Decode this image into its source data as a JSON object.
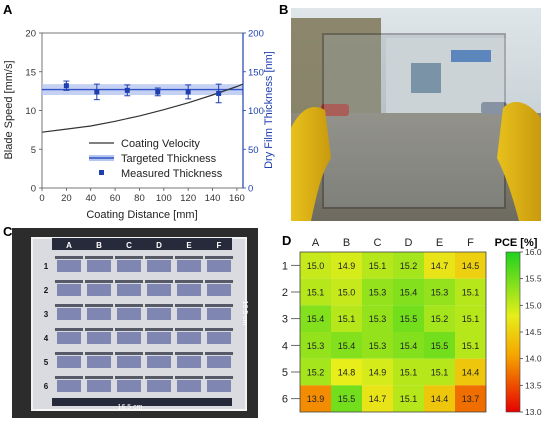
{
  "panels": {
    "a": "A",
    "b": "B",
    "c": "C",
    "d": "D"
  },
  "chart_data": [
    {
      "type": "line",
      "xlabel": "Coating Distance [mm]",
      "ylabel": "Blade Speed [mm/s]",
      "y2label": "Dry Film Thickness [nm]",
      "xlim": [
        0,
        165
      ],
      "ylim": [
        0,
        20
      ],
      "y2lim": [
        0,
        200
      ],
      "xticks": [
        "0",
        "20",
        "40",
        "60",
        "80",
        "100",
        "120",
        "140",
        "160"
      ],
      "yticks": [
        "0",
        "5",
        "10",
        "15",
        "20"
      ],
      "y2ticks": [
        "0",
        "50",
        "100",
        "150",
        "200"
      ],
      "legend": {
        "position": "lower-right",
        "entries": [
          "Coating Velocity",
          "Targeted Thickness",
          "Measured Thickness"
        ]
      },
      "coating_velocity": {
        "x": [
          0,
          20,
          40,
          60,
          80,
          100,
          120,
          140,
          160,
          165
        ],
        "y": [
          7.2,
          7.6,
          8.0,
          8.6,
          9.3,
          10.1,
          11.0,
          12.0,
          13.1,
          13.4
        ]
      },
      "targeted_thickness": {
        "value": 127,
        "band": [
          120,
          134
        ]
      },
      "measured_thickness": {
        "x": [
          20,
          45,
          70,
          95,
          120,
          145
        ],
        "y": [
          132,
          124,
          126,
          124,
          124,
          122
        ],
        "err": [
          6,
          10,
          7,
          5,
          9,
          12
        ]
      },
      "colors": {
        "axis_right": "#1f3fb0",
        "velocity": "#333333",
        "target": "#2f52c8",
        "measured": "#1f3fb0"
      }
    },
    {
      "type": "heatmap",
      "colorbar_label": "PCE [%]",
      "columns": [
        "A",
        "B",
        "C",
        "D",
        "E",
        "F"
      ],
      "rows": [
        "1",
        "2",
        "3",
        "4",
        "5",
        "6"
      ],
      "values": [
        [
          15.0,
          14.9,
          15.1,
          15.2,
          14.7,
          14.5
        ],
        [
          15.1,
          15.0,
          15.3,
          15.4,
          15.3,
          15.1
        ],
        [
          15.4,
          15.1,
          15.3,
          15.5,
          15.2,
          15.1
        ],
        [
          15.3,
          15.4,
          15.3,
          15.4,
          15.5,
          15.1
        ],
        [
          15.2,
          14.8,
          14.9,
          15.1,
          15.1,
          14.4
        ],
        [
          13.9,
          15.5,
          14.7,
          15.1,
          14.4,
          13.7
        ]
      ],
      "color_range": [
        13.0,
        16.0
      ],
      "colorbar_ticks": [
        "16.0",
        "15.5",
        "15.0",
        "14.5",
        "14.0",
        "13.5",
        "13.0"
      ]
    }
  ],
  "photo_c": {
    "columns": [
      "A",
      "B",
      "C",
      "D",
      "E",
      "F"
    ],
    "rows": [
      "1",
      "2",
      "3",
      "4",
      "5",
      "6"
    ],
    "dim_horizontal": "16.5 cm",
    "dim_vertical": "16.5 cm"
  }
}
